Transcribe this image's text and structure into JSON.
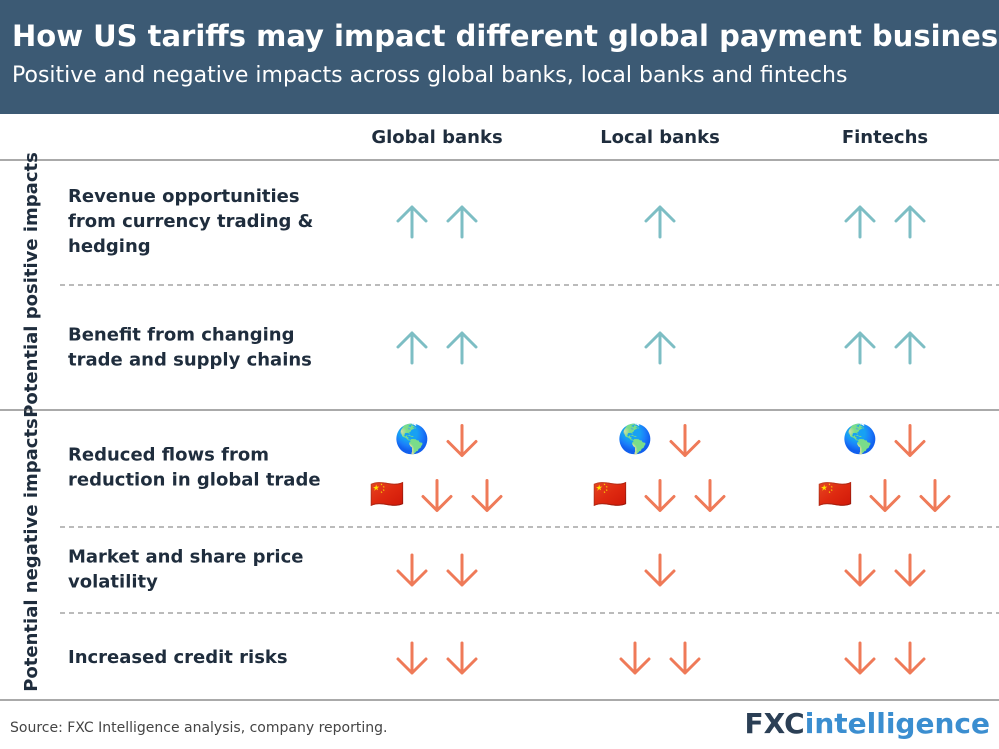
{
  "header": {
    "title": "How US tariffs may impact different global payment businesses",
    "subtitle": "Positive and negative impacts across global banks, local banks and fintechs"
  },
  "columns": [
    "Global banks",
    "Local banks",
    "Fintechs"
  ],
  "groups": [
    {
      "label": "Potential positive impacts",
      "direction": "up",
      "rows": [
        {
          "label": [
            "Revenue opportunities",
            "from currency trading &",
            "hedging"
          ],
          "cells": [
            [
              {
                "count": 2
              }
            ],
            [
              {
                "count": 1
              }
            ],
            [
              {
                "count": 2
              }
            ]
          ]
        },
        {
          "label": [
            "Benefit from changing",
            "trade and supply chains"
          ],
          "cells": [
            [
              {
                "count": 2
              }
            ],
            [
              {
                "count": 1
              }
            ],
            [
              {
                "count": 2
              }
            ]
          ]
        }
      ]
    },
    {
      "label": "Potential negative impacts",
      "direction": "down",
      "rows": [
        {
          "label": [
            "Reduced flows from",
            "reduction in global trade"
          ],
          "cells": [
            [
              {
                "icon": "🌎",
                "count": 1
              },
              {
                "icon": "🇨🇳",
                "count": 2
              }
            ],
            [
              {
                "icon": "🌎",
                "count": 1
              },
              {
                "icon": "🇨🇳",
                "count": 2
              }
            ],
            [
              {
                "icon": "🌎",
                "count": 1
              },
              {
                "icon": "🇨🇳",
                "count": 2
              }
            ]
          ]
        },
        {
          "label": [
            "Market and share price",
            "volatility"
          ],
          "cells": [
            [
              {
                "count": 2
              }
            ],
            [
              {
                "count": 1
              }
            ],
            [
              {
                "count": 2
              }
            ]
          ]
        },
        {
          "label": [
            "Increased credit risks"
          ],
          "cells": [
            [
              {
                "count": 2
              }
            ],
            [
              {
                "count": 2
              }
            ],
            [
              {
                "count": 2
              }
            ]
          ]
        }
      ]
    }
  ],
  "footer": {
    "source": "Source: FXC Intelligence analysis, company reporting.",
    "logo": {
      "prefix": "FXC",
      "suffix": "intelligence"
    }
  }
}
